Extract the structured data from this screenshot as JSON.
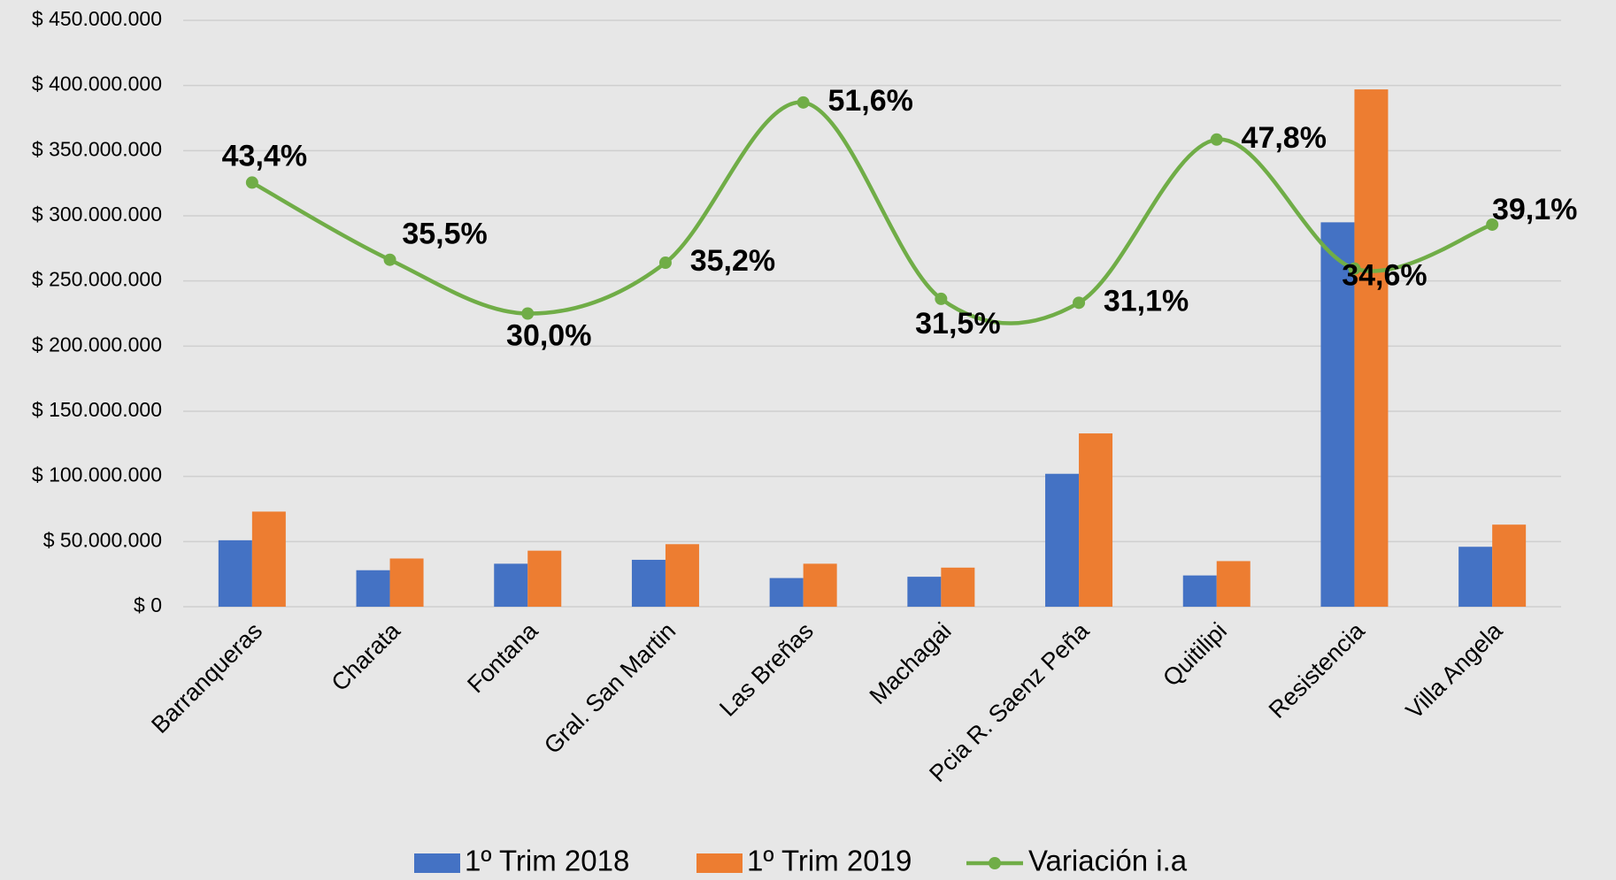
{
  "chart_data": {
    "type": "bar",
    "categories": [
      "Barranqueras",
      "Charata",
      "Fontana",
      "Gral. San Martin",
      "Las Breñas",
      "Machagai",
      "Pcia R. Saenz Peña",
      "Quitilipi",
      "Resistencia",
      "Villa Angela"
    ],
    "series": [
      {
        "name": "1º Trim 2018",
        "color": "#4472c4",
        "values": [
          51000000,
          28000000,
          33000000,
          36000000,
          22000000,
          23000000,
          102000000,
          24000000,
          295000000,
          46000000
        ]
      },
      {
        "name": "1º Trim 2019",
        "color": "#ed7d31",
        "values": [
          73000000,
          37000000,
          43000000,
          48000000,
          33000000,
          30000000,
          133000000,
          35000000,
          397000000,
          63000000
        ]
      },
      {
        "name": "Variación i.a",
        "type": "line",
        "axis": "y2",
        "color": "#70ad47",
        "values": [
          43.4,
          35.5,
          30.0,
          35.2,
          51.6,
          31.5,
          31.1,
          47.8,
          34.6,
          39.1
        ],
        "value_labels": [
          "43,4%",
          "35,5%",
          "30,0%",
          "35,2%",
          "51,6%",
          "31,5%",
          "31,1%",
          "47,8%",
          "34,6%",
          "39,1%"
        ]
      }
    ],
    "ylim": [
      0,
      450000000
    ],
    "yticks": [
      {
        "value": 0,
        "label": "$ 0"
      },
      {
        "value": 50000000,
        "label": "$ 50.000.000"
      },
      {
        "value": 100000000,
        "label": "$ 100.000.000"
      },
      {
        "value": 150000000,
        "label": "$ 150.000.000"
      },
      {
        "value": 200000000,
        "label": "$ 200.000.000"
      },
      {
        "value": 250000000,
        "label": "$ 250.000.000"
      },
      {
        "value": 300000000,
        "label": "$ 300.000.000"
      },
      {
        "value": 350000000,
        "label": "$ 350.000.000"
      },
      {
        "value": 400000000,
        "label": "$ 400.000.000"
      },
      {
        "value": 450000000,
        "label": "$ 450.000.000"
      }
    ],
    "y2lim": [
      0,
      60
    ],
    "grid": true,
    "legend": "bottom"
  }
}
